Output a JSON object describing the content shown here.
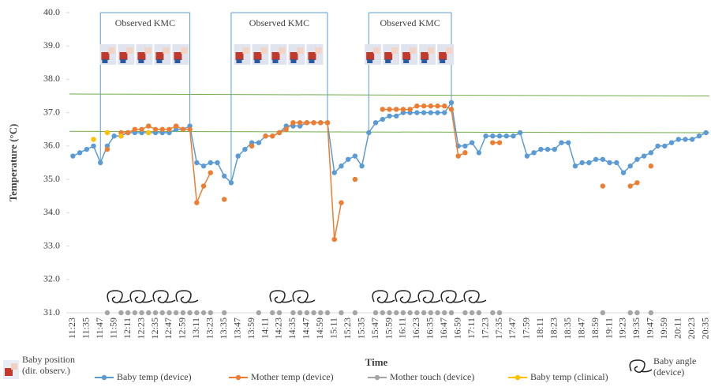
{
  "chart_data": {
    "type": "line",
    "y_label": "Temperature (°C)",
    "x_label": "Time",
    "categories": [
      "11:23",
      null,
      "11:35",
      null,
      "11:47",
      null,
      "11:59",
      null,
      "12:11",
      null,
      "12:23",
      null,
      "12:35",
      null,
      "12:47",
      null,
      "12:59",
      null,
      "13:11",
      null,
      "13:23",
      null,
      "13:35",
      null,
      "13:47",
      null,
      "13:59",
      null,
      "14:11",
      null,
      "14:23",
      null,
      "14:35",
      null,
      "14:47",
      null,
      "14:59",
      null,
      "15:11",
      null,
      "15:23",
      null,
      "15:35",
      null,
      "15:47",
      null,
      "15:59",
      null,
      "16:11",
      null,
      "16:23",
      null,
      "16:35",
      null,
      "16:47",
      null,
      "16:59",
      null,
      "17:11",
      null,
      "17:23",
      null,
      "17:35",
      null,
      "17:47",
      null,
      "17:59",
      null,
      "18:11",
      null,
      "18:23",
      null,
      "18:35",
      null,
      "18:47",
      null,
      "18:59",
      null,
      "19:11",
      null,
      "19:23",
      null,
      "19:35",
      null,
      "19:47",
      null,
      "19:59",
      null,
      "20:11",
      null,
      "20:23",
      null,
      "20:35"
    ],
    "series": [
      {
        "name": "Baby temp (device)",
        "color": "#5b9bd5",
        "show_line": true,
        "values": [
          35.7,
          35.8,
          35.9,
          36.0,
          35.5,
          36.0,
          36.3,
          36.3,
          36.4,
          36.4,
          36.4,
          36.4,
          36.4,
          36.4,
          36.4,
          36.5,
          36.5,
          36.6,
          35.5,
          35.4,
          35.5,
          35.5,
          35.1,
          34.9,
          35.7,
          35.9,
          36.1,
          36.1,
          36.3,
          36.3,
          36.4,
          36.6,
          36.6,
          36.6,
          36.7,
          36.7,
          36.7,
          36.7,
          35.2,
          35.4,
          35.6,
          35.7,
          35.4,
          36.4,
          36.7,
          36.8,
          36.9,
          36.9,
          37.0,
          37.0,
          37.0,
          37.0,
          37.0,
          37.0,
          37.0,
          37.3,
          36.0,
          36.0,
          36.1,
          35.8,
          36.3,
          36.3,
          36.3,
          36.3,
          36.3,
          36.4,
          35.7,
          35.8,
          35.9,
          35.9,
          35.9,
          36.1,
          36.1,
          35.4,
          35.5,
          35.5,
          35.6,
          35.6,
          35.5,
          35.5,
          35.2,
          35.4,
          35.6,
          35.7,
          35.8,
          36.0,
          36.0,
          36.1,
          36.2,
          36.2,
          36.2,
          36.3,
          36.4
        ]
      },
      {
        "name": "Mother temp (device)",
        "color": "#ed7d31",
        "show_line": true,
        "values": [
          null,
          null,
          null,
          null,
          null,
          35.9,
          null,
          36.4,
          36.4,
          36.5,
          36.5,
          36.6,
          36.5,
          36.5,
          36.5,
          36.6,
          36.5,
          36.5,
          34.3,
          34.8,
          35.2,
          null,
          34.4,
          null,
          null,
          null,
          36.0,
          null,
          36.3,
          36.3,
          36.4,
          36.5,
          36.7,
          36.7,
          36.7,
          36.7,
          36.7,
          36.7,
          33.2,
          34.3,
          null,
          35.0,
          null,
          null,
          null,
          37.1,
          37.1,
          37.1,
          37.1,
          37.1,
          37.2,
          37.2,
          37.2,
          37.2,
          37.2,
          37.1,
          35.7,
          35.8,
          null,
          null,
          null,
          36.1,
          36.1,
          null,
          null,
          null,
          null,
          null,
          null,
          null,
          null,
          null,
          null,
          null,
          null,
          null,
          null,
          34.8,
          null,
          null,
          null,
          34.8,
          34.9,
          null,
          35.4,
          null,
          null,
          null,
          null,
          null,
          null,
          null,
          null
        ]
      },
      {
        "name": "Mother touch (device)",
        "color": "#a5a5a5",
        "show_line": false,
        "values": [
          null,
          null,
          null,
          null,
          null,
          31.0,
          null,
          31.0,
          31.0,
          31.0,
          31.0,
          31.0,
          31.0,
          31.0,
          31.0,
          31.0,
          31.0,
          31.0,
          31.0,
          31.0,
          31.0,
          null,
          31.0,
          null,
          null,
          null,
          null,
          31.0,
          null,
          31.0,
          31.0,
          null,
          31.0,
          31.0,
          31.0,
          31.0,
          31.0,
          31.0,
          null,
          31.0,
          null,
          31.0,
          null,
          null,
          31.0,
          31.0,
          31.0,
          31.0,
          31.0,
          31.0,
          31.0,
          31.0,
          31.0,
          31.0,
          31.0,
          31.0,
          null,
          31.0,
          31.0,
          31.0,
          null,
          31.0,
          31.0,
          null,
          null,
          null,
          null,
          null,
          null,
          null,
          null,
          null,
          null,
          null,
          null,
          null,
          null,
          31.0,
          null,
          null,
          null,
          31.0,
          31.0,
          null,
          31.0,
          null,
          null,
          null,
          null,
          null,
          null,
          null,
          null
        ]
      },
      {
        "name": "Baby temp (clinical)",
        "color": "#ffc000",
        "show_line": true,
        "values": [
          null,
          null,
          null,
          36.2,
          null,
          36.4,
          null,
          36.3,
          null,
          null,
          null,
          36.4,
          null,
          null,
          null,
          null,
          null,
          null,
          null,
          null,
          null,
          null,
          null,
          null,
          null,
          null,
          null,
          null,
          null,
          null,
          null,
          null,
          null,
          null,
          null,
          null,
          null,
          null,
          null,
          null,
          null,
          null,
          null,
          null,
          null,
          null,
          null,
          null,
          null,
          null,
          null,
          null,
          null,
          null,
          null,
          null,
          null,
          null,
          null,
          null,
          null,
          null,
          null,
          null,
          null,
          null,
          null,
          null,
          null,
          null,
          null,
          null,
          null,
          null,
          null,
          null,
          null,
          null,
          null,
          null,
          null,
          null,
          null,
          null,
          null,
          null,
          null,
          null,
          null,
          null,
          null,
          null,
          null
        ]
      }
    ],
    "ylim": [
      31.0,
      40.0
    ],
    "yticks": [
      {
        "value": 31,
        "label": "31.0"
      },
      {
        "value": 32,
        "label": "32.0"
      },
      {
        "value": 33,
        "label": "33.0"
      },
      {
        "value": 34,
        "label": "34.0"
      },
      {
        "value": 35,
        "label": "35.0"
      },
      {
        "value": 36,
        "label": "36.0"
      },
      {
        "value": 37,
        "label": "37.0"
      },
      {
        "value": 38,
        "label": "38.0"
      },
      {
        "value": 39,
        "label": "39.0"
      },
      {
        "value": 40,
        "label": "40.0"
      }
    ],
    "reference_lines": [
      {
        "color": "#70ad47",
        "values": [
          37.56,
          37.5
        ]
      },
      {
        "color": "#70ad47",
        "values": [
          36.44,
          36.4
        ]
      }
    ],
    "annotations": [
      {
        "text": "Observed KMC",
        "span": [
          4,
          17
        ]
      },
      {
        "text": "Observed KMC",
        "span": [
          23,
          37
        ]
      },
      {
        "text": "Observed KMC",
        "span": [
          43,
          55
        ]
      }
    ],
    "position_legend": "Baby position (dir. observ.)",
    "angle_legend": "Baby angle (device)",
    "legend": "bottom"
  }
}
